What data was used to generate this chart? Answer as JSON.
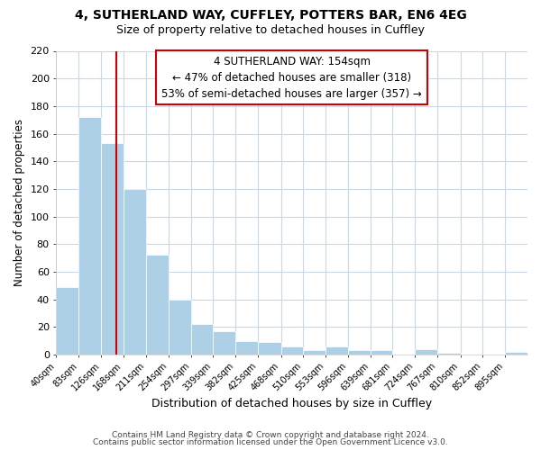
{
  "title": "4, SUTHERLAND WAY, CUFFLEY, POTTERS BAR, EN6 4EG",
  "subtitle": "Size of property relative to detached houses in Cuffley",
  "xlabel": "Distribution of detached houses by size in Cuffley",
  "ylabel": "Number of detached properties",
  "categories": [
    "40sqm",
    "83sqm",
    "126sqm",
    "168sqm",
    "211sqm",
    "254sqm",
    "297sqm",
    "339sqm",
    "382sqm",
    "425sqm",
    "468sqm",
    "510sqm",
    "553sqm",
    "596sqm",
    "639sqm",
    "681sqm",
    "724sqm",
    "767sqm",
    "810sqm",
    "852sqm",
    "895sqm"
  ],
  "values": [
    49,
    172,
    153,
    120,
    72,
    40,
    22,
    17,
    10,
    9,
    6,
    3,
    6,
    3,
    3,
    0,
    4,
    1,
    0,
    0,
    2
  ],
  "bar_color": "#aed0e6",
  "ylim": [
    0,
    220
  ],
  "yticks": [
    0,
    20,
    40,
    60,
    80,
    100,
    120,
    140,
    160,
    180,
    200,
    220
  ],
  "reference_line_x": 154,
  "reference_line_color": "#cc0000",
  "annotation_title": "4 SUTHERLAND WAY: 154sqm",
  "annotation_line1": "← 47% of detached houses are smaller (318)",
  "annotation_line2": "53% of semi-detached houses are larger (357) →",
  "annotation_box_color": "#ffffff",
  "annotation_box_edge_color": "#cc0000",
  "footer1": "Contains HM Land Registry data © Crown copyright and database right 2024.",
  "footer2": "Contains public sector information licensed under the Open Government Licence v3.0.",
  "background_color": "#ffffff",
  "grid_color": "#c8d8e8",
  "title_fontsize": 10,
  "subtitle_fontsize": 9,
  "bin_edges": [
    40,
    83,
    126,
    168,
    211,
    254,
    297,
    339,
    382,
    425,
    468,
    510,
    553,
    596,
    639,
    681,
    724,
    767,
    810,
    852,
    895,
    938
  ]
}
